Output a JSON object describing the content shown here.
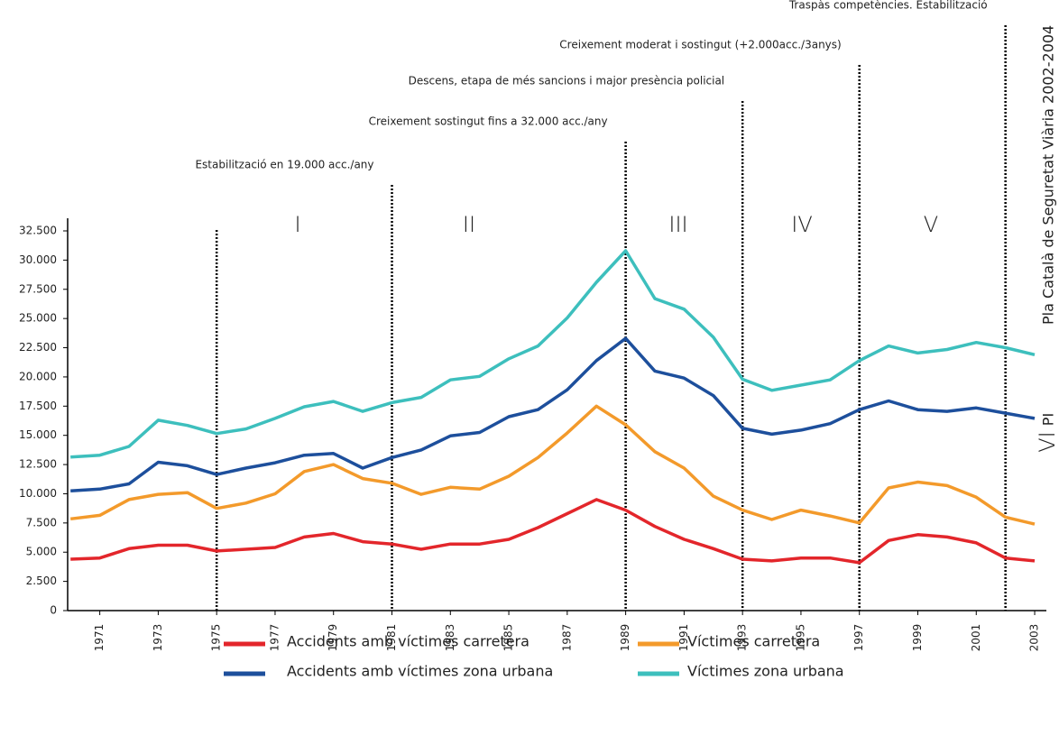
{
  "chart_data": {
    "type": "line",
    "x": [
      1970,
      1971,
      1972,
      1973,
      1974,
      1975,
      1976,
      1977,
      1978,
      1979,
      1980,
      1981,
      1982,
      1983,
      1984,
      1985,
      1986,
      1987,
      1988,
      1989,
      1990,
      1991,
      1992,
      1993,
      1994,
      1995,
      1996,
      1997,
      1998,
      1999,
      2000,
      2001,
      2002,
      2003
    ],
    "xlim": [
      1969.9,
      2003.4
    ],
    "xticks": [
      1971,
      1973,
      1975,
      1977,
      1979,
      1981,
      1983,
      1985,
      1987,
      1989,
      1991,
      1993,
      1995,
      1997,
      1999,
      2001,
      2003
    ],
    "ylim": [
      0,
      32500
    ],
    "yticks": [
      0,
      {
        "value": 2500,
        "label": "2.500"
      },
      {
        "value": 5000,
        "label": "5.000"
      },
      {
        "value": 7500,
        "label": "7.500"
      },
      {
        "value": 10000,
        "label": "10.000"
      },
      {
        "value": 12500,
        "label": "12.500"
      },
      {
        "value": 15000,
        "label": "15.000"
      },
      {
        "value": 17500,
        "label": "17.500"
      },
      {
        "value": 20000,
        "label": "20.000"
      },
      {
        "value": 22500,
        "label": "22.500"
      },
      {
        "value": 25000,
        "label": "25.000"
      },
      {
        "value": 27500,
        "label": "27.500"
      },
      {
        "value": 30000,
        "label": "30.000"
      },
      {
        "value": 32500,
        "label": "32.500"
      }
    ],
    "series": [
      {
        "name": "Accidents amb víctimes carretera",
        "color": "#e3262b",
        "values": [
          4400,
          4500,
          5300,
          5600,
          5600,
          5100,
          5250,
          5400,
          6300,
          6600,
          5900,
          5700,
          5250,
          5700,
          5700,
          6100,
          7100,
          8300,
          9500,
          8600,
          7200,
          6100,
          5300,
          4400,
          4250,
          4500,
          4500,
          4100,
          6000,
          6500,
          6300,
          5800,
          4500,
          4250
        ]
      },
      {
        "name": "Víctimes carretera",
        "color": "#f39a2b",
        "values": [
          7850,
          8150,
          9500,
          9950,
          10100,
          8750,
          9200,
          10000,
          11900,
          12500,
          11300,
          10900,
          9950,
          10550,
          10400,
          11500,
          13100,
          15200,
          17500,
          15900,
          13600,
          12200,
          9800,
          8600,
          7800,
          8600,
          8100,
          7500,
          10500,
          11000,
          10700,
          9700,
          8000,
          7400
        ]
      },
      {
        "name": "Accidents amb víctimes zona urbana",
        "color": "#1d4f9c",
        "values": [
          10250,
          10400,
          10850,
          12700,
          12400,
          11650,
          12200,
          12650,
          13300,
          13450,
          12200,
          13100,
          13750,
          14950,
          15250,
          16600,
          17200,
          18900,
          21400,
          23300,
          20500,
          19900,
          18400,
          15600,
          15100,
          15450,
          16000,
          17200,
          17950,
          17200,
          17050,
          17350,
          16900,
          16450
        ]
      },
      {
        "name": "Víctimes zona urbana",
        "color": "#3dbfbd",
        "values": [
          13150,
          13300,
          14050,
          16300,
          15850,
          15150,
          15550,
          16450,
          17450,
          17900,
          17050,
          17800,
          18250,
          19750,
          20050,
          21550,
          22650,
          25050,
          28100,
          30800,
          26700,
          25800,
          23400,
          19800,
          18850,
          19300,
          19750,
          21400,
          22650,
          22050,
          22350,
          22950,
          22500,
          21900
        ]
      }
    ],
    "dividers": [
      {
        "x": 1975
      },
      {
        "x": 1981,
        "label": "Estabilització en 19.000 acc./any"
      },
      {
        "x": 1989,
        "label": "Creixement sostingut fins a 32.000 acc./any"
      },
      {
        "x": 1993,
        "label": "Descens, etapa de més sancions i major presència policial"
      },
      {
        "x": 1997,
        "label": "Creixement moderat i sostingut (+2.000acc./3anys)"
      },
      {
        "x": 2002,
        "label": "Traspàs competències. Estabilització"
      }
    ],
    "periods": [
      "I",
      "II",
      "III",
      "IV",
      "V",
      "VI"
    ],
    "side_labels": [
      "Pla Català de Seguretat Viària 2002-2004",
      "PI"
    ]
  }
}
